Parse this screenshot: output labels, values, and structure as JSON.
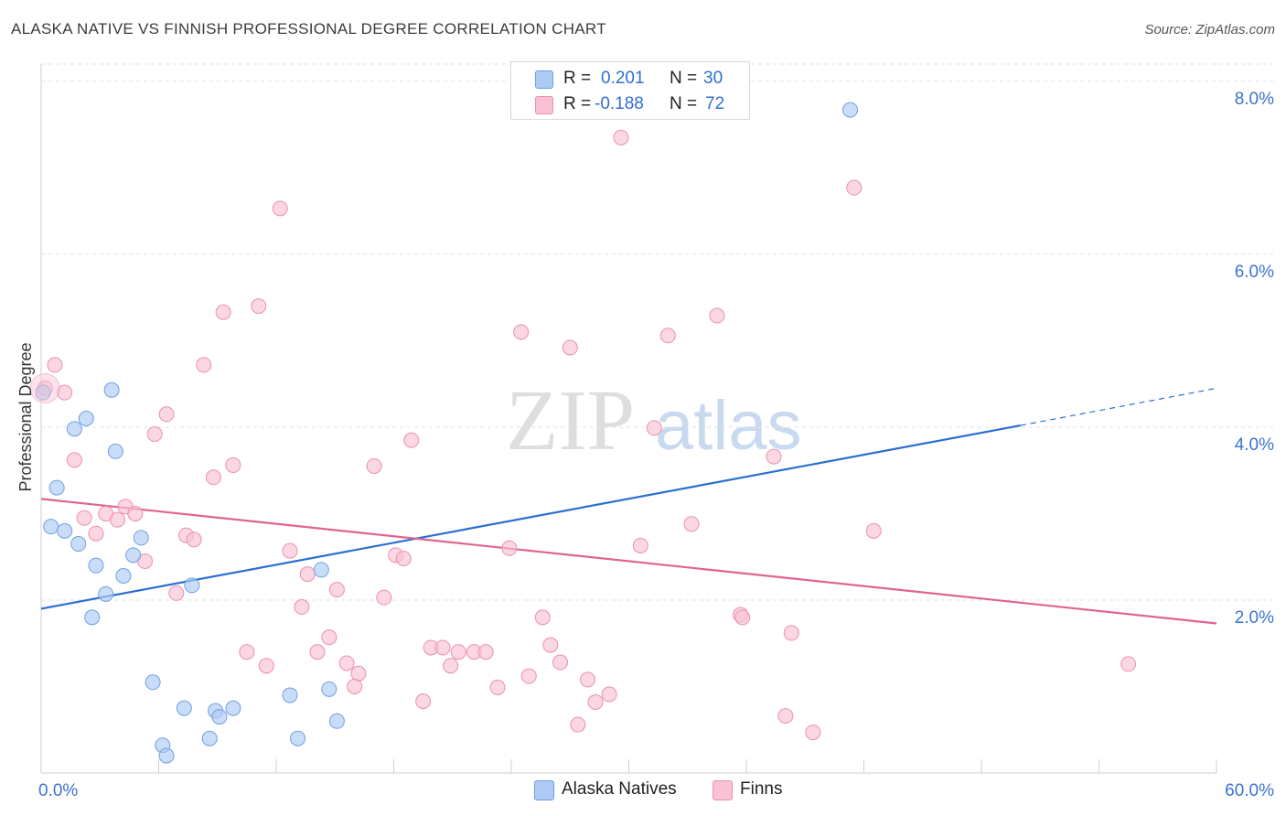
{
  "title": "ALASKA NATIVE VS FINNISH PROFESSIONAL DEGREE CORRELATION CHART",
  "source": "Source: ZipAtlas.com",
  "watermark": {
    "zip": "ZIP",
    "atlas": "atlas"
  },
  "legend_top": [
    {
      "r_label": "R =",
      "r_value": "0.201",
      "n_label": "N =",
      "n_value": "30",
      "color": "#aecbf5",
      "stroke": "#6f9fe0"
    },
    {
      "r_label": "R =",
      "r_value": "-0.188",
      "n_label": "N =",
      "n_value": "72",
      "color": "#f8c2d3",
      "stroke": "#ec8fb0"
    }
  ],
  "legend_bottom": [
    {
      "label": "Alaska Natives",
      "color": "#aecbf5",
      "stroke": "#6f9fe0"
    },
    {
      "label": "Finns",
      "color": "#f8c2d3",
      "stroke": "#ec8fb0"
    }
  ],
  "chart_data": {
    "type": "scatter",
    "xlabel": "",
    "ylabel": "Professional Degree",
    "xlim": [
      0,
      60
    ],
    "ylim": [
      0,
      8.2
    ],
    "x_tick_labels": [
      {
        "value": 0,
        "label": "0.0%"
      },
      {
        "value": 60,
        "label": "60.0%"
      }
    ],
    "y_tick_labels": [
      {
        "value": 2,
        "label": "2.0%"
      },
      {
        "value": 4,
        "label": "4.0%"
      },
      {
        "value": 6,
        "label": "6.0%"
      },
      {
        "value": 8,
        "label": "8.0%"
      }
    ],
    "grid": true,
    "series": [
      {
        "name": "Alaska Natives",
        "color": "#aecbf5",
        "stroke": "#6f9fe0",
        "line_color": "#2b6fd0",
        "trend": {
          "x0": 0,
          "y0": 1.9,
          "x1": 50,
          "y1": 4.02,
          "dash_to_x": 60,
          "dash_to_y": 4.45
        },
        "points": [
          [
            0.1,
            4.4
          ],
          [
            0.5,
            2.85
          ],
          [
            0.8,
            3.3
          ],
          [
            1.2,
            2.8
          ],
          [
            1.7,
            3.98
          ],
          [
            1.9,
            2.65
          ],
          [
            2.3,
            4.1
          ],
          [
            2.6,
            1.8
          ],
          [
            2.8,
            2.4
          ],
          [
            3.3,
            2.07
          ],
          [
            3.6,
            4.43
          ],
          [
            3.8,
            3.72
          ],
          [
            4.2,
            2.28
          ],
          [
            4.7,
            2.52
          ],
          [
            5.1,
            2.72
          ],
          [
            5.7,
            1.05
          ],
          [
            6.2,
            0.32
          ],
          [
            6.4,
            0.2
          ],
          [
            7.3,
            0.75
          ],
          [
            8.6,
            0.4
          ],
          [
            8.9,
            0.72
          ],
          [
            9.1,
            0.65
          ],
          [
            9.8,
            0.75
          ],
          [
            12.7,
            0.9
          ],
          [
            13.1,
            0.4
          ],
          [
            14.7,
            0.97
          ],
          [
            15.1,
            0.6
          ],
          [
            7.7,
            2.17
          ],
          [
            14.3,
            2.35
          ],
          [
            41.3,
            7.67
          ]
        ]
      },
      {
        "name": "Finns",
        "color": "#f8c2d3",
        "stroke": "#ec8fb0",
        "line_color": "#e0648f",
        "trend": {
          "x0": 0,
          "y0": 3.17,
          "x1": 60,
          "y1": 1.73
        },
        "points": [
          [
            0.2,
            4.45
          ],
          [
            0.7,
            4.72
          ],
          [
            1.2,
            4.4
          ],
          [
            1.7,
            3.62
          ],
          [
            2.2,
            2.95
          ],
          [
            2.8,
            2.77
          ],
          [
            3.3,
            3.0
          ],
          [
            3.9,
            2.93
          ],
          [
            4.3,
            3.08
          ],
          [
            4.8,
            3.0
          ],
          [
            5.3,
            2.45
          ],
          [
            5.8,
            3.92
          ],
          [
            6.4,
            4.15
          ],
          [
            6.9,
            2.08
          ],
          [
            7.4,
            2.75
          ],
          [
            7.8,
            2.7
          ],
          [
            8.3,
            4.72
          ],
          [
            8.8,
            3.42
          ],
          [
            9.3,
            5.33
          ],
          [
            9.8,
            3.56
          ],
          [
            10.5,
            1.4
          ],
          [
            11.1,
            5.4
          ],
          [
            11.5,
            1.24
          ],
          [
            12.2,
            6.53
          ],
          [
            12.7,
            2.57
          ],
          [
            13.3,
            1.92
          ],
          [
            13.6,
            2.3
          ],
          [
            14.1,
            1.4
          ],
          [
            14.7,
            1.57
          ],
          [
            15.1,
            2.12
          ],
          [
            15.6,
            1.27
          ],
          [
            16.2,
            1.15
          ],
          [
            17.0,
            3.55
          ],
          [
            17.5,
            2.03
          ],
          [
            18.1,
            2.52
          ],
          [
            18.5,
            2.48
          ],
          [
            18.9,
            3.85
          ],
          [
            19.5,
            0.83
          ],
          [
            19.9,
            1.45
          ],
          [
            20.5,
            1.45
          ],
          [
            20.9,
            1.24
          ],
          [
            21.3,
            1.4
          ],
          [
            22.1,
            1.4
          ],
          [
            22.7,
            1.4
          ],
          [
            23.3,
            0.99
          ],
          [
            23.9,
            2.6
          ],
          [
            24.5,
            5.1
          ],
          [
            24.9,
            1.12
          ],
          [
            25.6,
            1.8
          ],
          [
            26.0,
            1.48
          ],
          [
            26.5,
            1.28
          ],
          [
            27.0,
            4.92
          ],
          [
            27.4,
            0.56
          ],
          [
            27.9,
            1.08
          ],
          [
            28.3,
            0.82
          ],
          [
            29.0,
            0.91
          ],
          [
            29.6,
            7.35
          ],
          [
            30.6,
            2.63
          ],
          [
            31.3,
            3.99
          ],
          [
            32.0,
            5.06
          ],
          [
            33.2,
            2.88
          ],
          [
            34.5,
            5.29
          ],
          [
            35.7,
            1.83
          ],
          [
            35.8,
            1.8
          ],
          [
            37.4,
            3.66
          ],
          [
            38.0,
            0.66
          ],
          [
            38.3,
            1.62
          ],
          [
            39.4,
            0.47
          ],
          [
            41.5,
            6.77
          ],
          [
            42.5,
            2.8
          ],
          [
            55.5,
            1.26
          ],
          [
            16.0,
            1.0
          ]
        ]
      }
    ]
  }
}
